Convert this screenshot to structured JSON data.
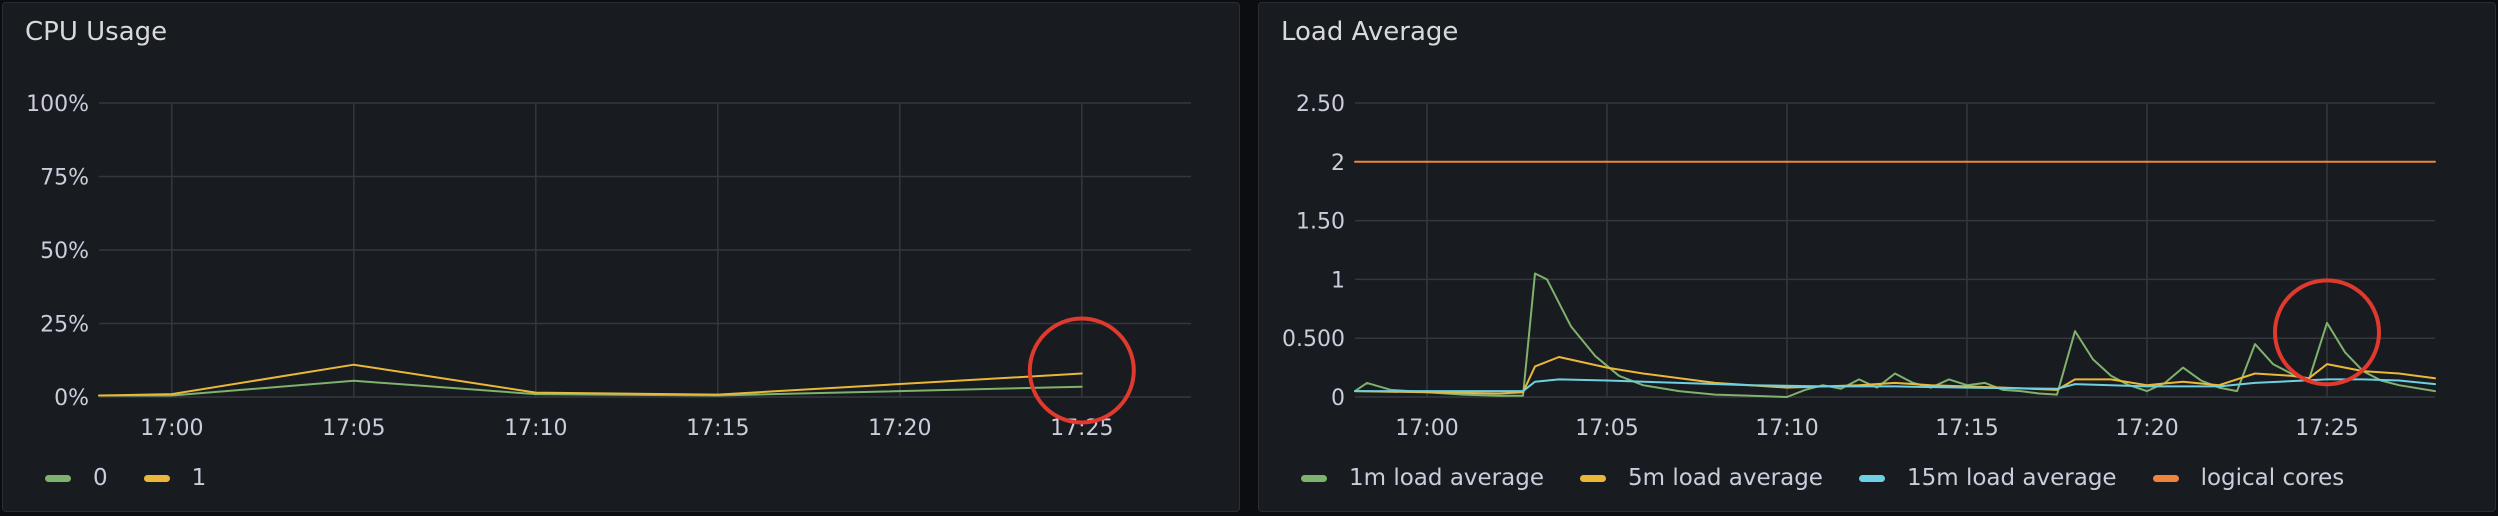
{
  "panels": [
    {
      "title": "CPU Usage",
      "legend": [
        {
          "name": "0",
          "color": "#7eb26d"
        },
        {
          "name": "1",
          "color": "#eab839"
        }
      ]
    },
    {
      "title": "Load Average",
      "legend": [
        {
          "name": "1m load average",
          "color": "#7eb26d"
        },
        {
          "name": "5m load average",
          "color": "#eab839"
        },
        {
          "name": "15m load average",
          "color": "#6ed0e0"
        },
        {
          "name": "logical cores",
          "color": "#ef843c"
        }
      ]
    }
  ],
  "chart_data": [
    {
      "type": "line",
      "title": "CPU Usage",
      "x_unit": "time (HH:MM)",
      "xlim": [
        "16:58",
        "17:28"
      ],
      "x_ticks": [
        "17:00",
        "17:05",
        "17:10",
        "17:15",
        "17:20",
        "17:25"
      ],
      "ylim": [
        0,
        100
      ],
      "y_ticks": [
        0,
        25,
        50,
        75,
        100
      ],
      "y_tick_labels": [
        "0%",
        "25%",
        "50%",
        "75%",
        "100%"
      ],
      "grid": true,
      "legend_position": "bottom-left",
      "series": [
        {
          "name": "0",
          "color": "#7eb26d",
          "points": [
            [
              "16:58",
              0.5
            ],
            [
              "17:00",
              0.5
            ],
            [
              "17:05",
              5.5
            ],
            [
              "17:10",
              1
            ],
            [
              "17:15",
              0.5
            ],
            [
              "17:25",
              3.5
            ]
          ]
        },
        {
          "name": "1",
          "color": "#eab839",
          "points": [
            [
              "16:58",
              0.5
            ],
            [
              "17:00",
              1
            ],
            [
              "17:05",
              11
            ],
            [
              "17:10",
              1.5
            ],
            [
              "17:15",
              0.8
            ],
            [
              "17:25",
              8
            ]
          ]
        }
      ],
      "annotations": [
        {
          "shape": "circle",
          "color": "#e03a2f",
          "at": [
            "17:25",
            9
          ]
        }
      ]
    },
    {
      "type": "line",
      "title": "Load Average",
      "x_unit": "time (HH:MM)",
      "xlim": [
        "16:58",
        "17:28"
      ],
      "x_ticks": [
        "17:00",
        "17:05",
        "17:10",
        "17:15",
        "17:20",
        "17:25"
      ],
      "ylim": [
        0,
        2.5
      ],
      "y_ticks": [
        0,
        0.5,
        1,
        1.5,
        2,
        2.5
      ],
      "y_tick_labels": [
        "0",
        "0.500",
        "1",
        "1.50",
        "2",
        "2.50"
      ],
      "grid": true,
      "legend_position": "bottom-left",
      "series": [
        {
          "name": "1m load average",
          "color": "#7eb26d",
          "points": [
            [
              "16:58",
              0.05
            ],
            [
              "16:58:20",
              0.12
            ],
            [
              "16:59",
              0.06
            ],
            [
              "17:00",
              0.04
            ],
            [
              "17:01",
              0.02
            ],
            [
              "17:02",
              0.01
            ],
            [
              "17:02:40",
              0.01
            ],
            [
              "17:03",
              1.05
            ],
            [
              "17:03:20",
              1.0
            ],
            [
              "17:04",
              0.6
            ],
            [
              "17:04:40",
              0.35
            ],
            [
              "17:05:20",
              0.18
            ],
            [
              "17:06",
              0.1
            ],
            [
              "17:07",
              0.05
            ],
            [
              "17:08",
              0.02
            ],
            [
              "17:09",
              0.01
            ],
            [
              "17:10",
              0.0
            ],
            [
              "17:10:30",
              0.06
            ],
            [
              "17:11",
              0.1
            ],
            [
              "17:11:30",
              0.07
            ],
            [
              "17:12",
              0.15
            ],
            [
              "17:12:30",
              0.08
            ],
            [
              "17:13",
              0.2
            ],
            [
              "17:13:30",
              0.12
            ],
            [
              "17:14",
              0.08
            ],
            [
              "17:14:30",
              0.15
            ],
            [
              "17:15",
              0.1
            ],
            [
              "17:15:30",
              0.12
            ],
            [
              "17:16",
              0.06
            ],
            [
              "17:16:30",
              0.05
            ],
            [
              "17:17",
              0.03
            ],
            [
              "17:17:30",
              0.02
            ],
            [
              "17:18",
              0.56
            ],
            [
              "17:18:30",
              0.32
            ],
            [
              "17:19",
              0.18
            ],
            [
              "17:19:30",
              0.1
            ],
            [
              "17:20",
              0.05
            ],
            [
              "17:20:30",
              0.12
            ],
            [
              "17:21",
              0.25
            ],
            [
              "17:21:30",
              0.14
            ],
            [
              "17:22",
              0.08
            ],
            [
              "17:22:30",
              0.05
            ],
            [
              "17:23",
              0.45
            ],
            [
              "17:23:30",
              0.28
            ],
            [
              "17:24",
              0.2
            ],
            [
              "17:24:30",
              0.15
            ],
            [
              "17:25",
              0.63
            ],
            [
              "17:25:30",
              0.38
            ],
            [
              "17:26",
              0.22
            ],
            [
              "17:26:30",
              0.14
            ],
            [
              "17:27",
              0.1
            ],
            [
              "17:28",
              0.05
            ]
          ]
        },
        {
          "name": "5m load average",
          "color": "#eab839",
          "points": [
            [
              "16:58",
              0.05
            ],
            [
              "17:00",
              0.04
            ],
            [
              "17:02",
              0.03
            ],
            [
              "17:02:40",
              0.04
            ],
            [
              "17:03",
              0.26
            ],
            [
              "17:03:40",
              0.34
            ],
            [
              "17:05",
              0.25
            ],
            [
              "17:06",
              0.2
            ],
            [
              "17:08",
              0.12
            ],
            [
              "17:10",
              0.08
            ],
            [
              "17:12",
              0.1
            ],
            [
              "17:13",
              0.12
            ],
            [
              "17:14",
              0.1
            ],
            [
              "17:16",
              0.08
            ],
            [
              "17:17:30",
              0.06
            ],
            [
              "17:18",
              0.15
            ],
            [
              "17:19",
              0.15
            ],
            [
              "17:20",
              0.1
            ],
            [
              "17:21",
              0.13
            ],
            [
              "17:22",
              0.1
            ],
            [
              "17:23",
              0.2
            ],
            [
              "17:24",
              0.18
            ],
            [
              "17:24:30",
              0.16
            ],
            [
              "17:25",
              0.28
            ],
            [
              "17:26",
              0.22
            ],
            [
              "17:27",
              0.2
            ],
            [
              "17:28",
              0.16
            ]
          ]
        },
        {
          "name": "15m load average",
          "color": "#6ed0e0",
          "points": [
            [
              "16:58",
              0.05
            ],
            [
              "17:00",
              0.05
            ],
            [
              "17:02",
              0.05
            ],
            [
              "17:02:40",
              0.05
            ],
            [
              "17:03",
              0.13
            ],
            [
              "17:03:40",
              0.15
            ],
            [
              "17:05",
              0.14
            ],
            [
              "17:07",
              0.12
            ],
            [
              "17:09",
              0.1
            ],
            [
              "17:11",
              0.09
            ],
            [
              "17:13",
              0.09
            ],
            [
              "17:15",
              0.08
            ],
            [
              "17:17:30",
              0.07
            ],
            [
              "17:18",
              0.11
            ],
            [
              "17:20",
              0.09
            ],
            [
              "17:22",
              0.09
            ],
            [
              "17:23",
              0.12
            ],
            [
              "17:25",
              0.15
            ],
            [
              "17:26",
              0.15
            ],
            [
              "17:27",
              0.14
            ],
            [
              "17:28",
              0.11
            ]
          ]
        },
        {
          "name": "logical cores",
          "color": "#ef843c",
          "points": [
            [
              "16:58",
              2
            ],
            [
              "17:28",
              2
            ]
          ]
        }
      ],
      "annotations": [
        {
          "shape": "circle",
          "color": "#e03a2f",
          "at": [
            "17:25",
            0.55
          ]
        }
      ]
    }
  ]
}
